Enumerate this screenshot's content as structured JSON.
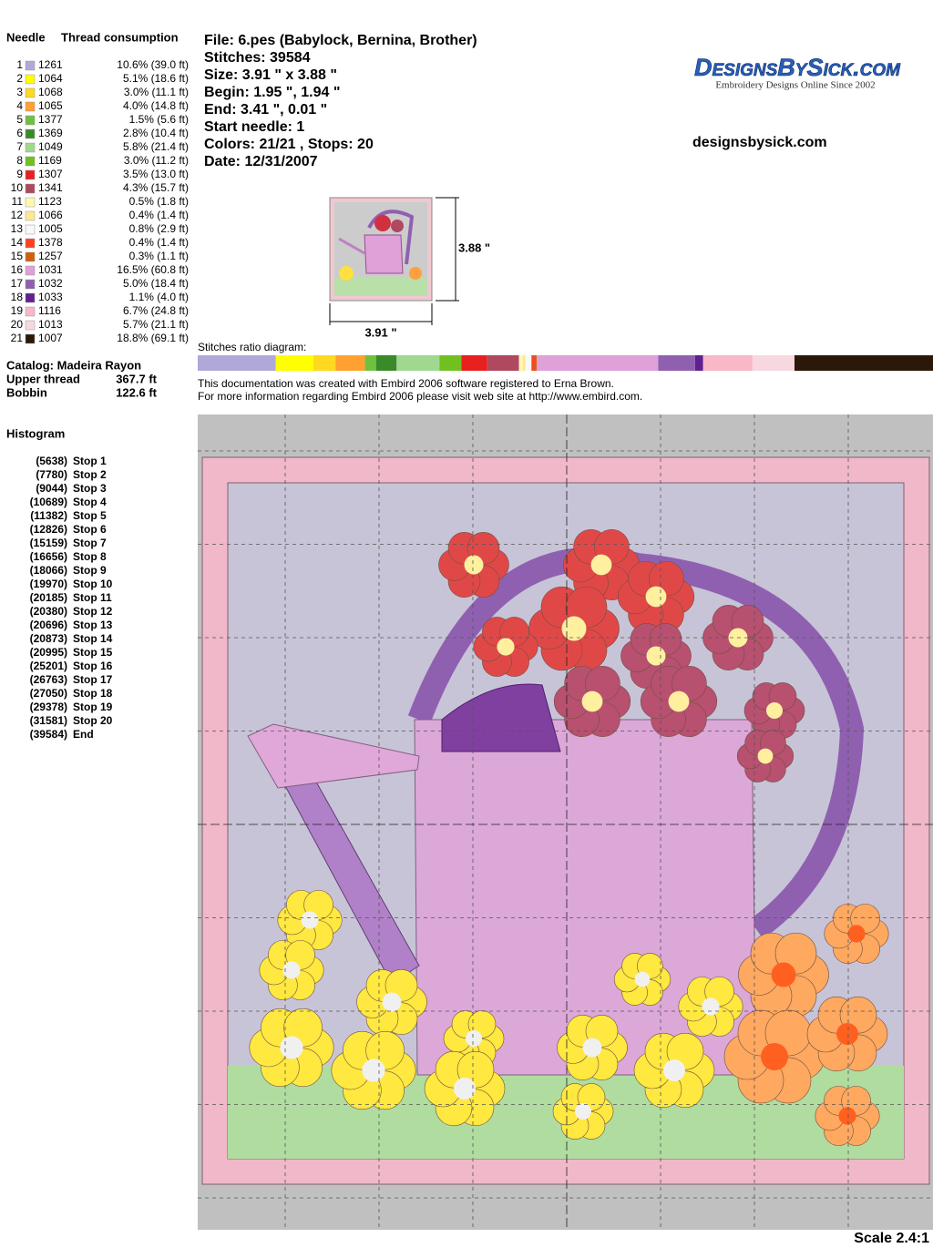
{
  "needles": {
    "header": [
      "Needle",
      "Thread consumption"
    ],
    "rows": [
      {
        "needle": "1",
        "color": "#b0a8d8",
        "code": "1261",
        "consumption": "10.6% (39.0 ft)"
      },
      {
        "needle": "2",
        "color": "#ffff00",
        "code": "1064",
        "consumption": "5.1% (18.6 ft)"
      },
      {
        "needle": "3",
        "color": "#ffd820",
        "code": "1068",
        "consumption": "3.0% (11.1 ft)"
      },
      {
        "needle": "4",
        "color": "#ffa030",
        "code": "1065",
        "consumption": "4.0% (14.8 ft)"
      },
      {
        "needle": "5",
        "color": "#70c040",
        "code": "1377",
        "consumption": "1.5% (5.6 ft)"
      },
      {
        "needle": "6",
        "color": "#3a8a2a",
        "code": "1369",
        "consumption": "2.8% (10.4 ft)"
      },
      {
        "needle": "7",
        "color": "#a0d890",
        "code": "1049",
        "consumption": "5.8% (21.4 ft)"
      },
      {
        "needle": "8",
        "color": "#70c020",
        "code": "1169",
        "consumption": "3.0% (11.2 ft)"
      },
      {
        "needle": "9",
        "color": "#e82020",
        "code": "1307",
        "consumption": "3.5% (13.0 ft)"
      },
      {
        "needle": "10",
        "color": "#b04860",
        "code": "1341",
        "consumption": "4.3% (15.7 ft)"
      },
      {
        "needle": "11",
        "color": "#fff8b0",
        "code": "1123",
        "consumption": "0.5% (1.8 ft)"
      },
      {
        "needle": "12",
        "color": "#ffe890",
        "code": "1066",
        "consumption": "0.4% (1.4 ft)"
      },
      {
        "needle": "13",
        "color": "#f8f8f8",
        "code": "1005",
        "consumption": "0.8% (2.9 ft)"
      },
      {
        "needle": "14",
        "color": "#ff4020",
        "code": "1378",
        "consumption": "0.4% (1.4 ft)"
      },
      {
        "needle": "15",
        "color": "#d06010",
        "code": "1257",
        "consumption": "0.3% (1.1 ft)"
      },
      {
        "needle": "16",
        "color": "#e0a0d8",
        "code": "1031",
        "consumption": "16.5% (60.8 ft)"
      },
      {
        "needle": "17",
        "color": "#9060b0",
        "code": "1032",
        "consumption": "5.0% (18.4 ft)"
      },
      {
        "needle": "18",
        "color": "#602090",
        "code": "1033",
        "consumption": "1.1% (4.0 ft)"
      },
      {
        "needle": "19",
        "color": "#f8b8c8",
        "code": "1116",
        "consumption": "6.7% (24.8 ft)"
      },
      {
        "needle": "20",
        "color": "#f8d8e0",
        "code": "1013",
        "consumption": "5.7% (21.1 ft)"
      },
      {
        "needle": "21",
        "color": "#2a1808",
        "code": "1007",
        "consumption": "18.8% (69.1 ft)"
      }
    ]
  },
  "catalog": {
    "title": "Catalog: Madeira Rayon",
    "upper_label": "Upper thread",
    "upper_value": "367.7 ft",
    "bobbin_label": "Bobbin",
    "bobbin_value": "122.6 ft"
  },
  "histogram": {
    "title": "Histogram",
    "rows": [
      {
        "count": "(5638)",
        "label": "Stop 1"
      },
      {
        "count": "(7780)",
        "label": "Stop 2"
      },
      {
        "count": "(9044)",
        "label": "Stop 3"
      },
      {
        "count": "(10689)",
        "label": "Stop 4"
      },
      {
        "count": "(11382)",
        "label": "Stop 5"
      },
      {
        "count": "(12826)",
        "label": "Stop 6"
      },
      {
        "count": "(15159)",
        "label": "Stop 7"
      },
      {
        "count": "(16656)",
        "label": "Stop 8"
      },
      {
        "count": "(18066)",
        "label": "Stop 9"
      },
      {
        "count": "(19970)",
        "label": "Stop 10"
      },
      {
        "count": "(20185)",
        "label": "Stop 11"
      },
      {
        "count": "(20380)",
        "label": "Stop 12"
      },
      {
        "count": "(20696)",
        "label": "Stop 13"
      },
      {
        "count": "(20873)",
        "label": "Stop 14"
      },
      {
        "count": "(20995)",
        "label": "Stop 15"
      },
      {
        "count": "(25201)",
        "label": "Stop 16"
      },
      {
        "count": "(26763)",
        "label": "Stop 17"
      },
      {
        "count": "(27050)",
        "label": "Stop 18"
      },
      {
        "count": "(29378)",
        "label": "Stop 19"
      },
      {
        "count": "(31581)",
        "label": "Stop 20"
      },
      {
        "count": "(39584)",
        "label": "End"
      }
    ]
  },
  "info": [
    "File: 6.pes  (Babylock, Bernina, Brother)",
    "Stitches: 39584",
    "Size: 3.91 \" x 3.88 \"",
    "Begin: 1.95 \", 1.94 \"",
    "End: 3.41 \", 0.01 \"",
    "Start needle: 1",
    "Colors: 21/21 , Stops: 20",
    "Date: 12/31/2007"
  ],
  "logo": {
    "name": "DesignsBySick.com",
    "tagline": "Embroidery Designs Online Since 2002"
  },
  "website": "designsbysick.com",
  "preview": {
    "height": "3.88 \"",
    "width": "3.91 \""
  },
  "ratio_title": "Stitches ratio diagram:",
  "footer": [
    "This documentation was created with Embird 2006 software registered to Erna Brown.",
    "For more information regarding Embird 2006 please visit web site at http://www.embird.com."
  ],
  "scale": "Scale 2.4:1"
}
